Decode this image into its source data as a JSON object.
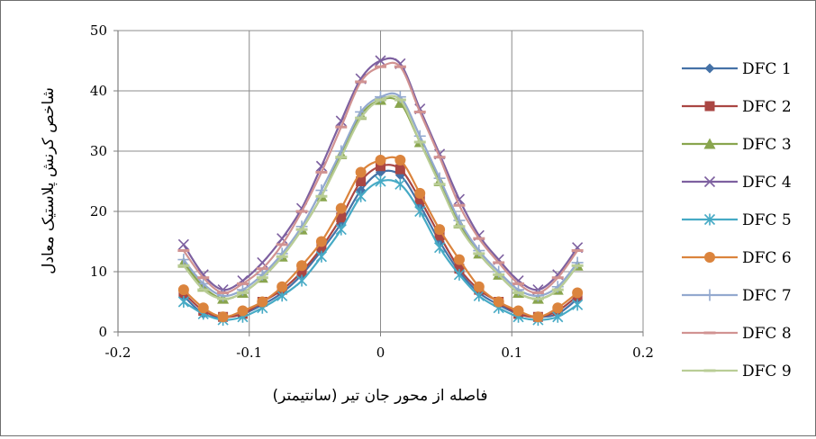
{
  "chart_data": {
    "type": "line",
    "title": "",
    "xlabel": "فاصله از محور جان تیر (سانتیمتر)",
    "ylabel": "شاخص کرنش پلاستیک معادل",
    "xlim": [
      -0.2,
      0.2
    ],
    "ylim": [
      0,
      50
    ],
    "xticks": [
      "-0.2",
      "-0.1",
      "0",
      "0.1",
      "0.2"
    ],
    "yticks": [
      "0",
      "10",
      "20",
      "30",
      "40",
      "50"
    ],
    "grid": true,
    "legend_position": "right",
    "x": [
      -0.15,
      -0.135,
      -0.12,
      -0.105,
      -0.09,
      -0.075,
      -0.06,
      -0.045,
      -0.03,
      -0.015,
      0,
      0.015,
      0.03,
      0.045,
      0.06,
      0.075,
      0.09,
      0.105,
      0.12,
      0.135,
      0.15
    ],
    "series": [
      {
        "name": "DFC 1",
        "color": "#4572A7",
        "marker": "diamond",
        "values": [
          6,
          3,
          2.5,
          3,
          4.5,
          6.5,
          9.5,
          13.5,
          18,
          23.5,
          26.5,
          26,
          21,
          15,
          10,
          6.5,
          4.5,
          3,
          2.5,
          3,
          5.5
        ]
      },
      {
        "name": "DFC 2",
        "color": "#AA4643",
        "marker": "square",
        "values": [
          6.5,
          3.5,
          2.5,
          3,
          5,
          7,
          10,
          14,
          19,
          25,
          27.5,
          27,
          22,
          16,
          10.5,
          7,
          5,
          3,
          2.5,
          3.5,
          6
        ]
      },
      {
        "name": "DFC 3",
        "color": "#89A54E",
        "marker": "triangle",
        "values": [
          11.5,
          7.5,
          5.5,
          6.5,
          9,
          12.5,
          17,
          22.5,
          29.5,
          36,
          38.5,
          38,
          31.5,
          25,
          18,
          13,
          9.5,
          6.5,
          5.5,
          7,
          11
        ]
      },
      {
        "name": "DFC 4",
        "color": "#7D60A0",
        "marker": "x",
        "values": [
          14.5,
          9.5,
          7,
          8.5,
          11.5,
          15.5,
          20.5,
          27.5,
          35,
          42,
          45,
          44.5,
          37,
          29.5,
          22,
          16,
          12,
          8.5,
          7,
          9.5,
          14
        ]
      },
      {
        "name": "DFC 5",
        "color": "#46AAC5",
        "marker": "star",
        "values": [
          5,
          3,
          2,
          2.5,
          4,
          6,
          8.5,
          12.5,
          17,
          22.5,
          25,
          24.5,
          20,
          14,
          9.5,
          6,
          4,
          2.5,
          2,
          2.5,
          4.5
        ]
      },
      {
        "name": "DFC 6",
        "color": "#DB843D",
        "marker": "circle",
        "values": [
          7,
          4,
          2.5,
          3.5,
          5,
          7.5,
          11,
          15,
          20.5,
          26.5,
          28.5,
          28.5,
          23,
          17,
          12,
          7.5,
          5,
          3.5,
          2.5,
          4,
          6.5
        ]
      },
      {
        "name": "DFC 7",
        "color": "#93A9CF",
        "marker": "plus",
        "values": [
          12,
          8,
          6,
          7,
          9.5,
          13,
          17.5,
          23.5,
          30,
          36.5,
          39,
          39,
          32.5,
          25.5,
          18.5,
          13.5,
          10,
          7,
          6,
          7.5,
          11.5
        ]
      },
      {
        "name": "DFC 8",
        "color": "#D19392",
        "marker": "dash",
        "values": [
          13.5,
          9,
          6.5,
          8,
          10.5,
          14.5,
          20,
          26.5,
          34,
          41.5,
          44,
          44,
          36.5,
          29,
          21,
          15.5,
          11.5,
          8,
          6.5,
          9,
          13.5
        ]
      },
      {
        "name": "DFC 9",
        "color": "#B9CD96",
        "marker": "dash",
        "values": [
          11,
          7,
          5.5,
          6.5,
          9,
          12.5,
          17,
          22.5,
          29,
          35.5,
          38.5,
          38.5,
          31.5,
          24.5,
          17.5,
          13,
          9.5,
          6.5,
          5.5,
          7,
          11
        ]
      }
    ]
  }
}
